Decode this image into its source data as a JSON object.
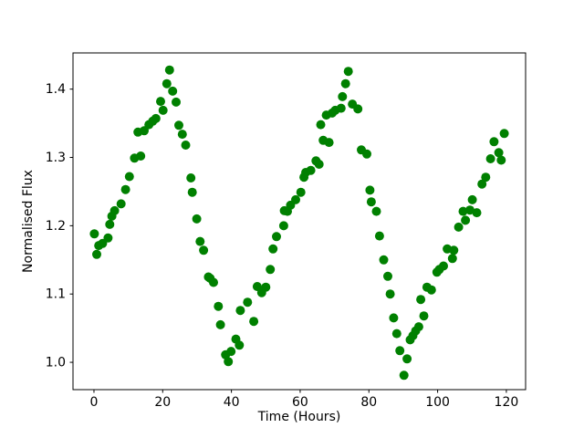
{
  "figure": {
    "background": "#ffffff",
    "axes_background": "#ffffff",
    "spine_color": "#000000",
    "text_color": "#000000"
  },
  "chart_data": {
    "type": "scatter",
    "title": "",
    "xlabel": "Time (Hours)",
    "ylabel": "Normalised Flux",
    "xlim": [
      -6.1,
      125.6
    ],
    "ylim": [
      0.96,
      1.453
    ],
    "xticks": [
      0,
      20,
      40,
      60,
      80,
      100,
      120
    ],
    "xtick_labels": [
      "0",
      "20",
      "40",
      "60",
      "80",
      "100",
      "120"
    ],
    "yticks": [
      1.0,
      1.1,
      1.2,
      1.3,
      1.4
    ],
    "ytick_labels": [
      "1.0",
      "1.1",
      "1.2",
      "1.3",
      "1.4"
    ],
    "grid": false,
    "legend": null,
    "marker": {
      "shape": "circle",
      "color": "#008000",
      "radius_px": 5
    },
    "series": [
      {
        "name": "normalised-flux",
        "points": [
          [
            0.1,
            1.188
          ],
          [
            0.8,
            1.158
          ],
          [
            1.4,
            1.171
          ],
          [
            2.5,
            1.174
          ],
          [
            4.1,
            1.182
          ],
          [
            4.6,
            1.202
          ],
          [
            5.2,
            1.214
          ],
          [
            6.0,
            1.222
          ],
          [
            7.9,
            1.232
          ],
          [
            9.2,
            1.253
          ],
          [
            10.3,
            1.272
          ],
          [
            11.8,
            1.299
          ],
          [
            12.8,
            1.337
          ],
          [
            13.6,
            1.302
          ],
          [
            14.6,
            1.339
          ],
          [
            16.0,
            1.348
          ],
          [
            17.1,
            1.353
          ],
          [
            18.0,
            1.357
          ],
          [
            19.4,
            1.382
          ],
          [
            20.1,
            1.369
          ],
          [
            21.2,
            1.408
          ],
          [
            22.0,
            1.428
          ],
          [
            22.9,
            1.397
          ],
          [
            23.9,
            1.381
          ],
          [
            24.7,
            1.347
          ],
          [
            25.7,
            1.334
          ],
          [
            26.7,
            1.318
          ],
          [
            28.2,
            1.27
          ],
          [
            28.6,
            1.249
          ],
          [
            29.9,
            1.21
          ],
          [
            30.9,
            1.177
          ],
          [
            31.9,
            1.164
          ],
          [
            33.3,
            1.125
          ],
          [
            33.8,
            1.123
          ],
          [
            34.8,
            1.117
          ],
          [
            36.2,
            1.082
          ],
          [
            36.8,
            1.055
          ],
          [
            38.3,
            1.011
          ],
          [
            39.1,
            1.001
          ],
          [
            39.9,
            1.016
          ],
          [
            41.3,
            1.034
          ],
          [
            42.3,
            1.025
          ],
          [
            42.6,
            1.076
          ],
          [
            44.7,
            1.088
          ],
          [
            46.5,
            1.06
          ],
          [
            47.5,
            1.111
          ],
          [
            48.8,
            1.102
          ],
          [
            50.0,
            1.11
          ],
          [
            51.3,
            1.136
          ],
          [
            52.1,
            1.166
          ],
          [
            53.1,
            1.184
          ],
          [
            55.2,
            1.2
          ],
          [
            55.4,
            1.222
          ],
          [
            56.3,
            1.221
          ],
          [
            57.2,
            1.23
          ],
          [
            58.7,
            1.238
          ],
          [
            60.2,
            1.249
          ],
          [
            61.1,
            1.271
          ],
          [
            61.6,
            1.278
          ],
          [
            63.1,
            1.281
          ],
          [
            64.6,
            1.295
          ],
          [
            65.5,
            1.29
          ],
          [
            66.0,
            1.348
          ],
          [
            66.7,
            1.325
          ],
          [
            67.6,
            1.362
          ],
          [
            68.4,
            1.322
          ],
          [
            69.3,
            1.365
          ],
          [
            70.2,
            1.369
          ],
          [
            71.9,
            1.372
          ],
          [
            72.3,
            1.389
          ],
          [
            73.2,
            1.408
          ],
          [
            74.0,
            1.426
          ],
          [
            75.2,
            1.378
          ],
          [
            76.8,
            1.371
          ],
          [
            77.8,
            1.311
          ],
          [
            79.4,
            1.305
          ],
          [
            80.3,
            1.252
          ],
          [
            80.7,
            1.235
          ],
          [
            82.2,
            1.221
          ],
          [
            83.1,
            1.185
          ],
          [
            84.3,
            1.15
          ],
          [
            85.5,
            1.126
          ],
          [
            86.2,
            1.1
          ],
          [
            87.2,
            1.065
          ],
          [
            88.1,
            1.042
          ],
          [
            89.0,
            1.017
          ],
          [
            90.2,
            0.981
          ],
          [
            91.1,
            1.005
          ],
          [
            92.0,
            1.033
          ],
          [
            92.8,
            1.039
          ],
          [
            93.6,
            1.046
          ],
          [
            94.5,
            1.052
          ],
          [
            95.1,
            1.092
          ],
          [
            96.0,
            1.068
          ],
          [
            96.9,
            1.11
          ],
          [
            98.2,
            1.106
          ],
          [
            99.8,
            1.132
          ],
          [
            100.5,
            1.136
          ],
          [
            101.7,
            1.141
          ],
          [
            102.8,
            1.166
          ],
          [
            104.3,
            1.152
          ],
          [
            104.7,
            1.164
          ],
          [
            106.1,
            1.198
          ],
          [
            107.4,
            1.221
          ],
          [
            108.1,
            1.208
          ],
          [
            109.4,
            1.223
          ],
          [
            110.1,
            1.238
          ],
          [
            111.4,
            1.219
          ],
          [
            112.9,
            1.261
          ],
          [
            114.0,
            1.271
          ],
          [
            115.4,
            1.298
          ],
          [
            116.4,
            1.323
          ],
          [
            117.8,
            1.307
          ],
          [
            118.5,
            1.296
          ],
          [
            119.4,
            1.335
          ]
        ]
      }
    ]
  }
}
